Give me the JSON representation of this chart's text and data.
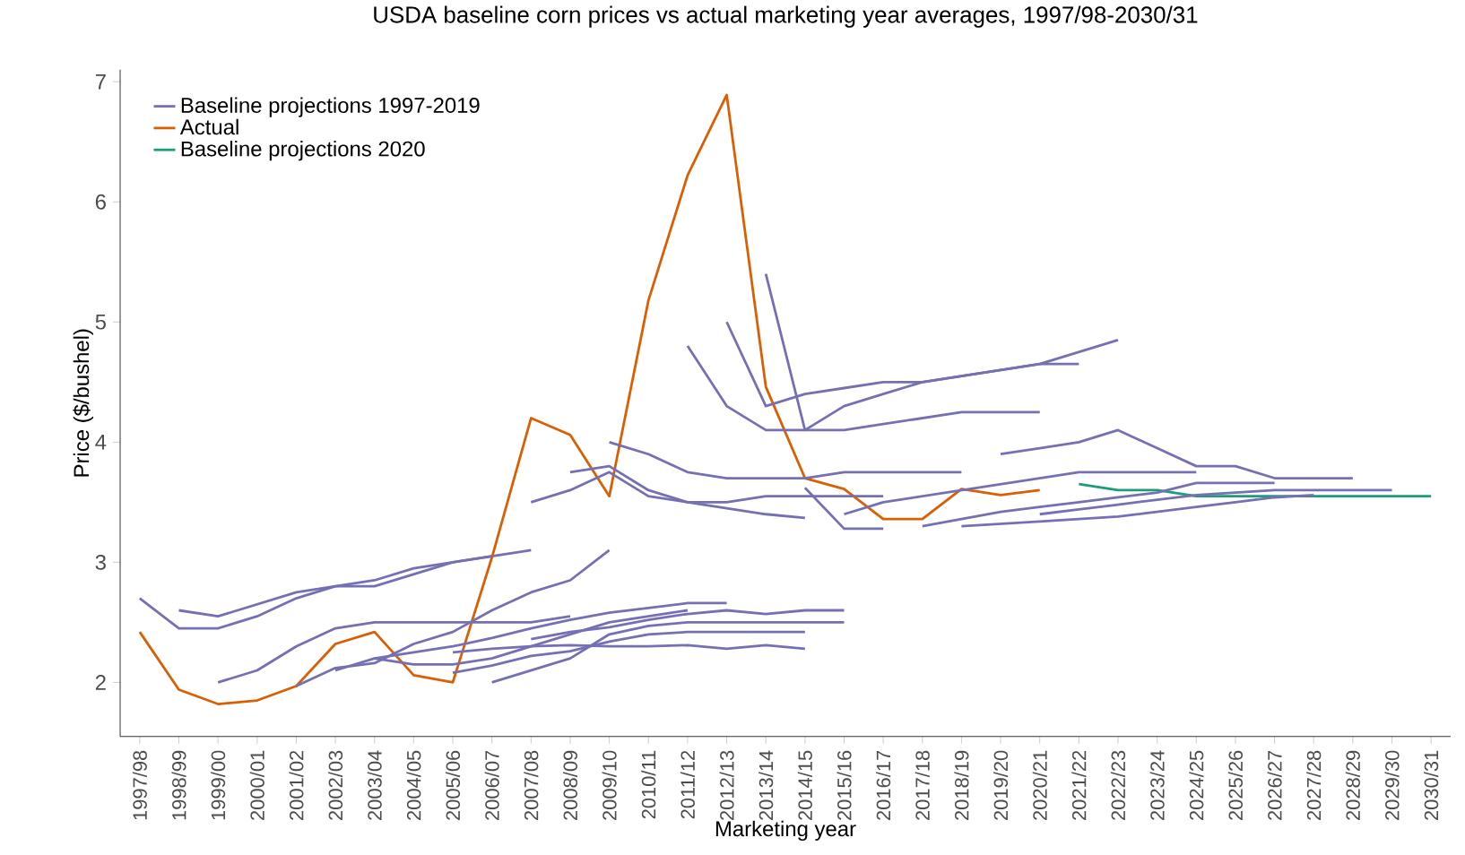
{
  "chart_data": {
    "type": "line",
    "title": "USDA baseline corn prices vs actual marketing year averages, 1997/98-2030/31",
    "xlabel": "Marketing year",
    "ylabel": "Price ($/bushel)",
    "categories": [
      "1997/98",
      "1998/99",
      "1999/00",
      "2000/01",
      "2001/02",
      "2002/03",
      "2003/04",
      "2004/05",
      "2005/06",
      "2006/07",
      "2007/08",
      "2008/09",
      "2009/10",
      "2010/11",
      "2011/12",
      "2012/13",
      "2013/14",
      "2014/15",
      "2015/16",
      "2016/17",
      "2017/18",
      "2018/19",
      "2019/20",
      "2020/21",
      "2021/22",
      "2022/23",
      "2023/24",
      "2024/25",
      "2025/26",
      "2026/27",
      "2027/28",
      "2028/29",
      "2029/30",
      "2030/31"
    ],
    "ylim": [
      1.55,
      7.1
    ],
    "yticks": [
      2,
      3,
      4,
      5,
      6,
      7
    ],
    "legend": "top left",
    "grid": false,
    "marker": "none",
    "line_style": "solid",
    "series": [
      {
        "name": "Baseline projections 1997-2019",
        "color": "#7570b3",
        "values": [
          2.7,
          2.45,
          2.45,
          2.55,
          2.7,
          2.8,
          2.8,
          2.9,
          3.0,
          3.05,
          3.1,
          null,
          null,
          null,
          null,
          null,
          null,
          null,
          null,
          null,
          null,
          null,
          null,
          null,
          null,
          null,
          null,
          null,
          null,
          null,
          null,
          null,
          null,
          null
        ]
      },
      {
        "name": "Actual",
        "color": "#d95f02",
        "values": [
          2.42,
          1.94,
          1.82,
          1.85,
          1.97,
          2.32,
          2.42,
          2.06,
          2.0,
          3.04,
          4.2,
          4.06,
          3.55,
          5.18,
          6.22,
          6.89,
          4.46,
          3.7,
          3.61,
          3.36,
          3.36,
          3.61,
          3.56,
          3.6,
          null,
          null,
          null,
          null,
          null,
          null,
          null,
          null,
          null,
          null
        ]
      },
      {
        "name": "Baseline projections 2020",
        "color": "#1b9e77",
        "values": [
          null,
          null,
          null,
          null,
          null,
          null,
          null,
          null,
          null,
          null,
          null,
          null,
          null,
          null,
          null,
          null,
          null,
          null,
          null,
          null,
          null,
          null,
          null,
          null,
          3.65,
          3.6,
          3.6,
          3.55,
          3.55,
          3.55,
          3.55,
          3.55,
          3.55,
          3.55
        ]
      },
      {
        "color": "#7570b3",
        "values": [
          null,
          2.6,
          2.55,
          2.65,
          2.75,
          2.8,
          2.85,
          2.95,
          3.0,
          3.05,
          null,
          null,
          null,
          null,
          null,
          null,
          null,
          null,
          null,
          null,
          null,
          null,
          null,
          null,
          null,
          null,
          null,
          null,
          null,
          null,
          null,
          null,
          null,
          null
        ]
      },
      {
        "color": "#7570b3",
        "values": [
          null,
          null,
          2.0,
          2.1,
          2.3,
          2.45,
          2.5,
          2.5,
          2.5,
          2.5,
          2.5,
          2.55,
          null,
          null,
          null,
          null,
          null,
          null,
          null,
          null,
          null,
          null,
          null,
          null,
          null,
          null,
          null,
          null,
          null,
          null,
          null,
          null,
          null,
          null
        ]
      },
      {
        "color": "#7570b3",
        "values": [
          null,
          null,
          null,
          null,
          1.97,
          2.12,
          2.16,
          2.32,
          2.42,
          2.6,
          2.75,
          2.85,
          3.1,
          null,
          null,
          null,
          null,
          null,
          null,
          null,
          null,
          null,
          null,
          null,
          null,
          null,
          null,
          null,
          null,
          null,
          null,
          null,
          null,
          null
        ]
      },
      {
        "color": "#7570b3",
        "values": [
          null,
          null,
          null,
          null,
          null,
          2.1,
          2.2,
          2.15,
          2.15,
          2.2,
          2.3,
          2.4,
          2.5,
          2.55,
          2.6,
          null,
          null,
          null,
          null,
          null,
          null,
          null,
          null,
          null,
          null,
          null,
          null,
          null,
          null,
          null,
          null,
          null,
          null,
          null
        ]
      },
      {
        "color": "#7570b3",
        "values": [
          null,
          null,
          null,
          null,
          null,
          null,
          2.2,
          2.25,
          2.3,
          2.37,
          2.45,
          2.52,
          2.58,
          2.62,
          2.66,
          2.66,
          null,
          null,
          null,
          null,
          null,
          null,
          null,
          null,
          null,
          null,
          null,
          null,
          null,
          null,
          null,
          null,
          null,
          null
        ]
      },
      {
        "color": "#7570b3",
        "values": [
          null,
          null,
          null,
          null,
          null,
          null,
          null,
          null,
          2.08,
          2.14,
          2.22,
          2.26,
          2.34,
          2.4,
          2.42,
          2.42,
          2.42,
          2.42,
          null,
          null,
          null,
          null,
          null,
          null,
          null,
          null,
          null,
          null,
          null,
          null,
          null,
          null,
          null,
          null
        ]
      },
      {
        "color": "#7570b3",
        "values": [
          null,
          null,
          null,
          null,
          null,
          null,
          null,
          null,
          2.25,
          2.28,
          2.3,
          2.31,
          2.3,
          2.3,
          2.31,
          2.28,
          2.31,
          2.28,
          null,
          null,
          null,
          null,
          null,
          null,
          null,
          null,
          null,
          null,
          null,
          null,
          null,
          null,
          null,
          null
        ]
      },
      {
        "color": "#7570b3",
        "values": [
          null,
          null,
          null,
          null,
          null,
          null,
          null,
          null,
          null,
          2.0,
          2.1,
          2.2,
          2.4,
          2.47,
          2.5,
          2.5,
          2.5,
          2.5,
          2.5,
          null,
          null,
          null,
          null,
          null,
          null,
          null,
          null,
          null,
          null,
          null,
          null,
          null,
          null,
          null
        ]
      },
      {
        "color": "#7570b3",
        "values": [
          null,
          null,
          null,
          null,
          null,
          null,
          null,
          null,
          null,
          null,
          2.36,
          2.42,
          2.46,
          2.52,
          2.57,
          2.6,
          2.57,
          2.6,
          2.6,
          null,
          null,
          null,
          null,
          null,
          null,
          null,
          null,
          null,
          null,
          null,
          null,
          null,
          null,
          null
        ]
      },
      {
        "color": "#7570b3",
        "values": [
          null,
          null,
          null,
          null,
          null,
          null,
          null,
          null,
          null,
          null,
          3.5,
          3.6,
          3.75,
          3.55,
          3.5,
          3.5,
          3.55,
          3.55,
          3.55,
          3.55,
          null,
          null,
          null,
          null,
          null,
          null,
          null,
          null,
          null,
          null,
          null,
          null,
          null,
          null
        ]
      },
      {
        "color": "#7570b3",
        "values": [
          null,
          null,
          null,
          null,
          null,
          null,
          null,
          null,
          null,
          null,
          null,
          3.75,
          3.8,
          3.6,
          3.5,
          3.45,
          3.4,
          3.37,
          null,
          null,
          null,
          null,
          null,
          null,
          null,
          null,
          null,
          null,
          null,
          null,
          null,
          null,
          null,
          null
        ]
      },
      {
        "color": "#7570b3",
        "values": [
          null,
          null,
          null,
          null,
          null,
          null,
          null,
          null,
          null,
          null,
          null,
          null,
          4.0,
          3.9,
          3.75,
          3.7,
          3.7,
          3.7,
          3.75,
          3.75,
          3.75,
          3.75,
          null,
          null,
          null,
          null,
          null,
          null,
          null,
          null,
          null,
          null,
          null,
          null
        ]
      },
      {
        "color": "#7570b3",
        "values": [
          null,
          null,
          null,
          null,
          null,
          null,
          null,
          null,
          null,
          null,
          null,
          null,
          null,
          null,
          4.8,
          4.3,
          4.1,
          4.1,
          4.1,
          4.15,
          4.2,
          4.25,
          4.25,
          4.25,
          null,
          null,
          null,
          null,
          null,
          null,
          null,
          null,
          null,
          null
        ]
      },
      {
        "color": "#7570b3",
        "values": [
          null,
          null,
          null,
          null,
          null,
          null,
          null,
          null,
          null,
          null,
          null,
          null,
          null,
          null,
          null,
          5.0,
          4.3,
          4.4,
          4.45,
          4.5,
          4.5,
          4.55,
          4.6,
          4.65,
          4.65,
          null,
          null,
          null,
          null,
          null,
          null,
          null,
          null,
          null
        ]
      },
      {
        "color": "#7570b3",
        "values": [
          null,
          null,
          null,
          null,
          null,
          null,
          null,
          null,
          null,
          null,
          null,
          null,
          null,
          null,
          null,
          null,
          5.4,
          4.1,
          4.3,
          4.4,
          4.5,
          4.55,
          4.6,
          4.65,
          4.75,
          4.85,
          null,
          null,
          null,
          null,
          null,
          null,
          null,
          null
        ]
      },
      {
        "color": "#7570b3",
        "values": [
          null,
          null,
          null,
          null,
          null,
          null,
          null,
          null,
          null,
          null,
          null,
          null,
          null,
          null,
          null,
          null,
          null,
          3.62,
          3.28,
          3.28,
          null,
          null,
          null,
          null,
          null,
          null,
          null,
          null,
          null,
          null,
          null,
          null,
          null,
          null
        ]
      },
      {
        "color": "#7570b3",
        "values": [
          null,
          null,
          null,
          null,
          null,
          null,
          null,
          null,
          null,
          null,
          null,
          null,
          null,
          null,
          null,
          null,
          null,
          null,
          3.4,
          3.5,
          3.55,
          3.6,
          3.65,
          3.7,
          3.75,
          3.75,
          3.75,
          3.75,
          null,
          null,
          null,
          null,
          null,
          null
        ]
      },
      {
        "color": "#7570b3",
        "values": [
          null,
          null,
          null,
          null,
          null,
          null,
          null,
          null,
          null,
          null,
          null,
          null,
          null,
          null,
          null,
          null,
          null,
          null,
          null,
          null,
          3.3,
          3.36,
          3.42,
          3.46,
          3.5,
          3.54,
          3.58,
          3.66,
          3.66,
          3.66,
          null,
          null,
          null,
          null
        ]
      },
      {
        "color": "#7570b3",
        "values": [
          null,
          null,
          null,
          null,
          null,
          null,
          null,
          null,
          null,
          null,
          null,
          null,
          null,
          null,
          null,
          null,
          null,
          null,
          null,
          null,
          null,
          3.3,
          3.32,
          3.34,
          3.36,
          3.38,
          3.42,
          3.46,
          3.5,
          3.54,
          3.56,
          null,
          null,
          null
        ]
      },
      {
        "color": "#7570b3",
        "values": [
          null,
          null,
          null,
          null,
          null,
          null,
          null,
          null,
          null,
          null,
          null,
          null,
          null,
          null,
          null,
          null,
          null,
          null,
          null,
          null,
          null,
          null,
          3.9,
          3.95,
          4.0,
          4.1,
          3.95,
          3.8,
          3.8,
          3.7,
          3.7,
          3.7,
          null,
          null
        ]
      },
      {
        "color": "#7570b3",
        "values": [
          null,
          null,
          null,
          null,
          null,
          null,
          null,
          null,
          null,
          null,
          null,
          null,
          null,
          null,
          null,
          null,
          null,
          null,
          null,
          null,
          null,
          null,
          null,
          3.4,
          3.44,
          3.48,
          3.52,
          3.56,
          3.58,
          3.6,
          3.6,
          3.6,
          3.6,
          null
        ]
      }
    ]
  }
}
